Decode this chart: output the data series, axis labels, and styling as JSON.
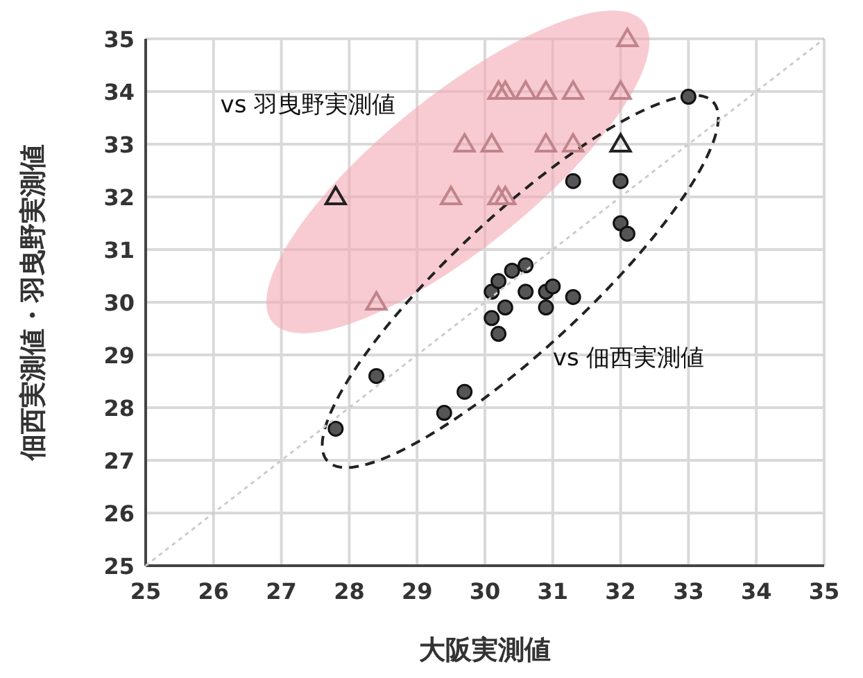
{
  "chart_data": {
    "type": "scatter",
    "xlabel": "大阪実測値",
    "ylabel": "佃西実測値・羽曳野実測値",
    "xlim": [
      25,
      35
    ],
    "ylim": [
      25,
      35
    ],
    "xticks": [
      25,
      26,
      27,
      28,
      29,
      30,
      31,
      32,
      33,
      34,
      35
    ],
    "yticks": [
      25,
      26,
      27,
      28,
      29,
      30,
      31,
      32,
      33,
      34,
      35
    ],
    "grid": true,
    "series": [
      {
        "name": "vs 佃西実測値",
        "marker": "circle",
        "color": "#555555",
        "x": [
          27.8,
          28.4,
          29.4,
          29.7,
          30.1,
          30.2,
          30.3,
          30.1,
          30.2,
          30.4,
          30.6,
          30.6,
          30.9,
          31.0,
          30.9,
          31.3,
          31.3,
          32.0,
          32.0,
          32.1,
          33.0
        ],
        "values": [
          27.6,
          28.6,
          27.9,
          28.3,
          29.7,
          29.4,
          29.9,
          30.2,
          30.4,
          30.6,
          30.7,
          30.2,
          30.2,
          30.3,
          29.9,
          30.1,
          32.3,
          32.3,
          31.5,
          31.3,
          33.9
        ]
      },
      {
        "name": "vs 羽曳野実測値",
        "marker": "triangle",
        "x": [
          27.8,
          28.4,
          29.5,
          29.7,
          30.1,
          30.2,
          30.3,
          30.2,
          30.3,
          30.6,
          30.9,
          31.3,
          32.1,
          30.9,
          31.3,
          32.0,
          32.0
        ],
        "values": [
          32,
          30,
          32,
          33,
          33,
          32,
          32,
          34,
          34,
          34,
          34,
          34,
          35,
          33,
          33,
          33,
          34
        ],
        "colors": [
          "#222222",
          "#c0848a",
          "#c0848a",
          "#c0848a",
          "#c0848a",
          "#c0848a",
          "#c0848a",
          "#c0848a",
          "#c0848a",
          "#c0848a",
          "#c0848a",
          "#c0848a",
          "#c0848a",
          "#c0848a",
          "#c0848a",
          "#222222",
          "#c0848a"
        ]
      },
      {
        "type": "line",
        "color": "#cccccc",
        "line_style": "dotted",
        "marker": "none",
        "x": [
          25,
          35
        ],
        "values": [
          25,
          35
        ]
      }
    ]
  }
}
